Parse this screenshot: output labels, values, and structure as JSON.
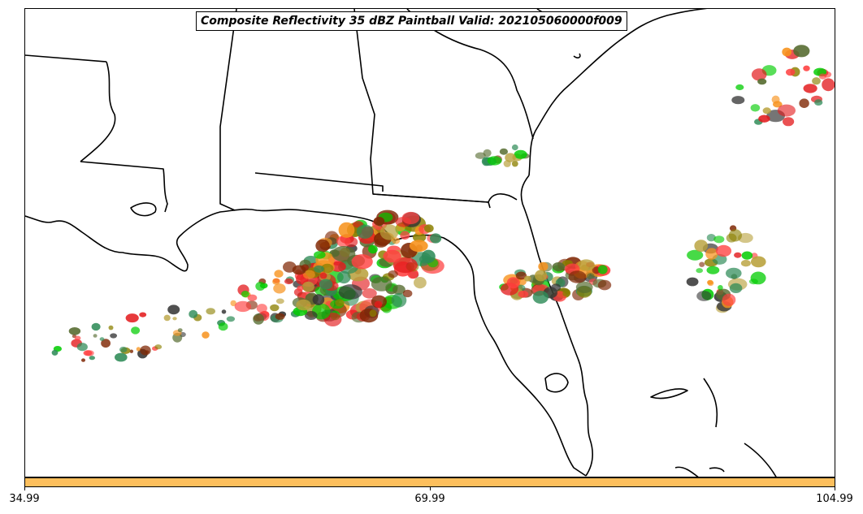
{
  "title": "Composite Reflectivity 35 dBZ Paintball Valid: 202105060000f009",
  "map": {
    "region": "Southeastern United States and Gulf of Mexico",
    "line_color": "#000000",
    "background": "#ffffff"
  },
  "colorbar": {
    "fill": "#fdbf5d",
    "ticks": [
      "34.99",
      "69.99",
      "104.99"
    ]
  },
  "member_colors": [
    "#00cc00",
    "#f7931e",
    "#e31a1c",
    "#7f2704",
    "#556b2f",
    "#8b8000",
    "#333333",
    "#2e8b57",
    "#ff4040",
    "#b8a03a"
  ],
  "paintball_clusters": [
    {
      "name": "northern-gulf-coast-line",
      "seed": 11
    },
    {
      "name": "central-gulf-band",
      "seed": 23
    },
    {
      "name": "western-gulf-band",
      "seed": 37
    },
    {
      "name": "central-florida-cluster",
      "seed": 41
    },
    {
      "name": "georgia-coast-cluster",
      "seed": 53
    },
    {
      "name": "atlantic-offshore-cluster",
      "seed": 67
    },
    {
      "name": "far-atlantic-northeast-cluster",
      "seed": 79
    }
  ]
}
